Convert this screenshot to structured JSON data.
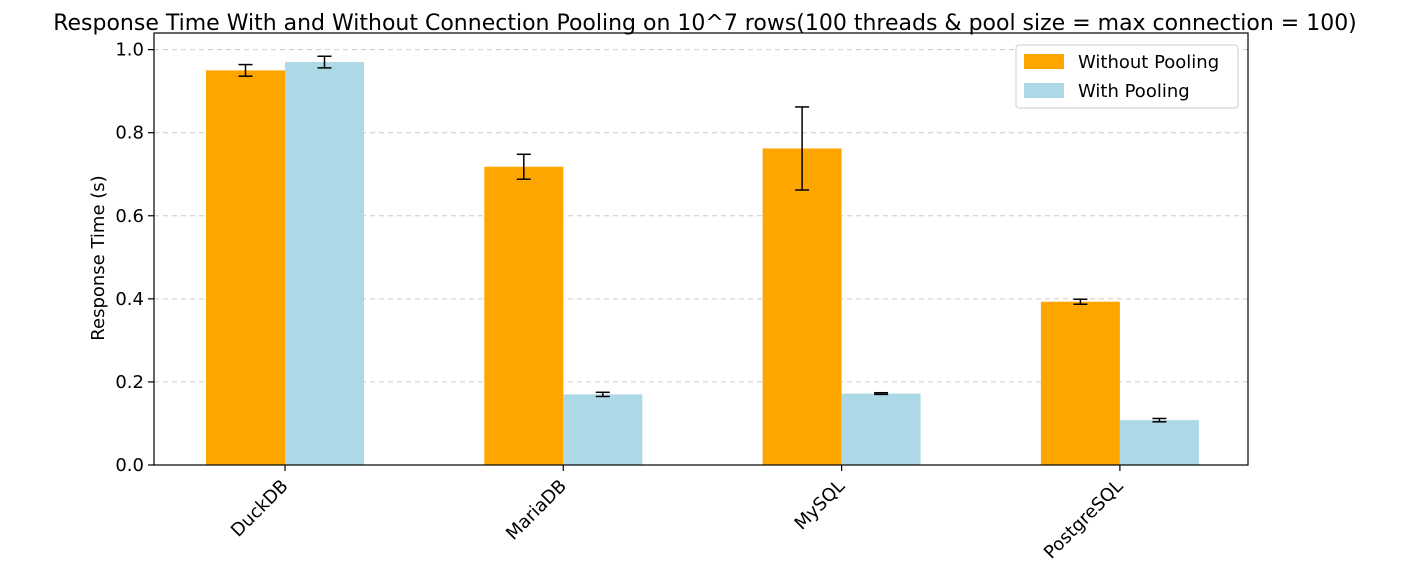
{
  "chart_data": {
    "type": "bar",
    "title": "Response Time With and Without Connection Pooling on 10^7 rows(100 threads & pool size = max connection = 100)",
    "xlabel": "",
    "ylabel": "Response Time (s)",
    "categories": [
      "DuckDB",
      "MariaDB",
      "MySQL",
      "PostgreSQL"
    ],
    "ylim": [
      0,
      1.04
    ],
    "yticks": [
      0.0,
      0.2,
      0.4,
      0.6,
      0.8,
      1.0
    ],
    "ytick_labels": [
      "0.0",
      "0.2",
      "0.4",
      "0.6",
      "0.8",
      "1.0"
    ],
    "grid": "y-dashed",
    "legend_position": "top-right",
    "series": [
      {
        "name": "Without Pooling",
        "color": "#FFA500",
        "values": [
          0.95,
          0.718,
          0.762,
          0.393
        ],
        "errors": [
          0.014,
          0.03,
          0.1,
          0.006
        ]
      },
      {
        "name": "With Pooling",
        "color": "#ADD8E6",
        "values": [
          0.97,
          0.17,
          0.172,
          0.108
        ],
        "errors": [
          0.014,
          0.005,
          0.002,
          0.004
        ]
      }
    ]
  }
}
